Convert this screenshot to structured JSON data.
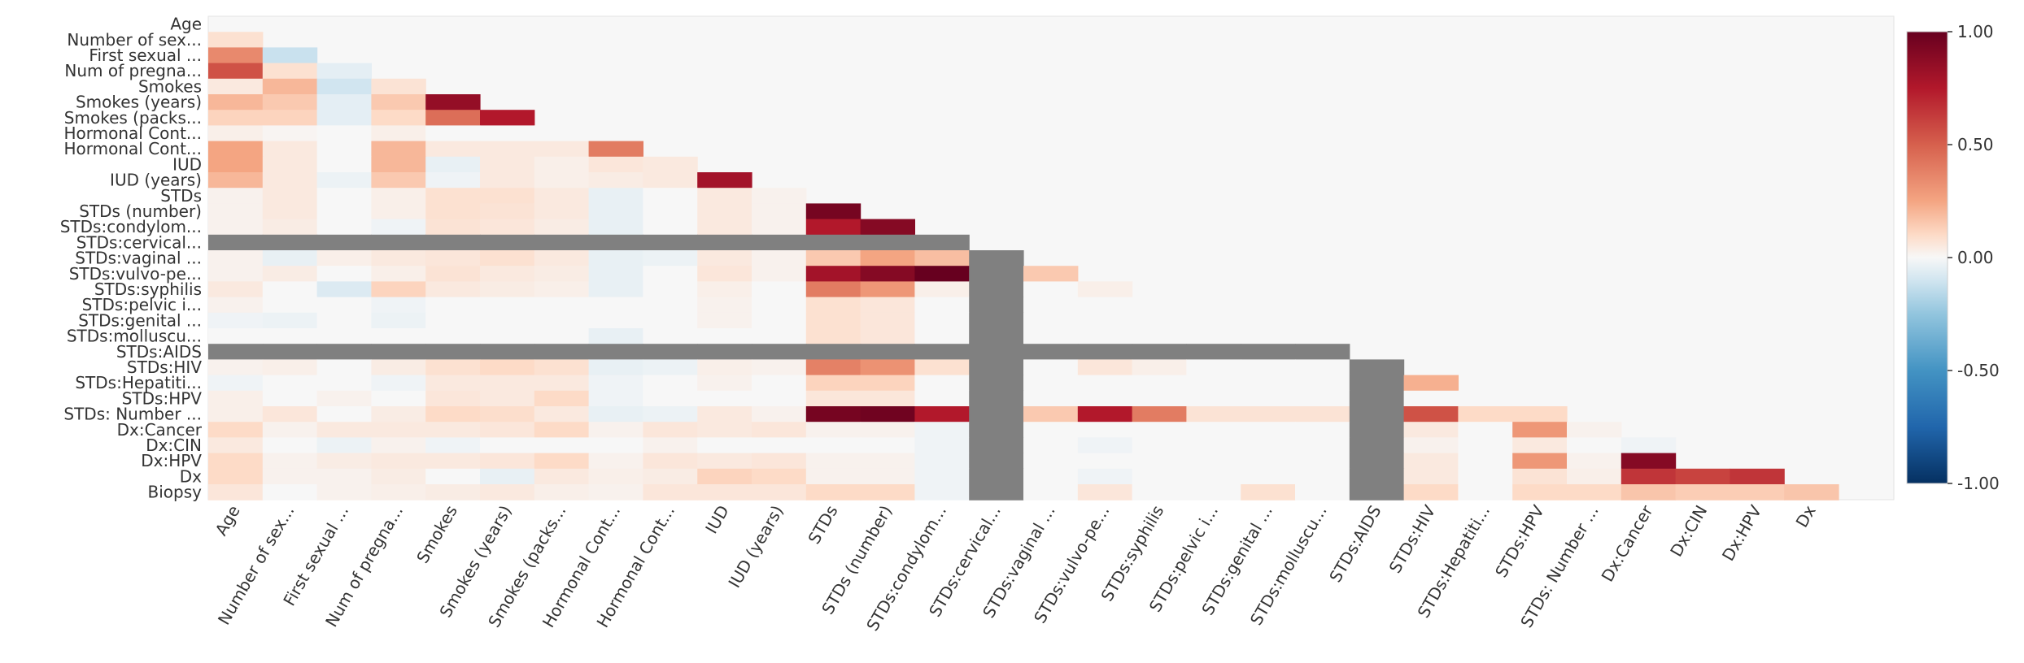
{
  "chart_data": {
    "type": "heatmap",
    "title": "",
    "xlabel": "",
    "ylabel": "",
    "variables": [
      "Age",
      "Number of sex...",
      "First sexual ...",
      "Num of pregna...",
      "Smokes",
      "Smokes (years)",
      "Smokes (packs...",
      "Hormonal Cont...",
      "Hormonal Cont...",
      "IUD",
      "IUD (years)",
      "STDs",
      "STDs (number)",
      "STDs:condylom...",
      "STDs:cervical...",
      "STDs:vaginal ...",
      "STDs:vulvo-pe...",
      "STDs:syphilis",
      "STDs:pelvic i...",
      "STDs:genital ...",
      "STDs:molluscu...",
      "STDs:AIDS",
      "STDs:HIV",
      "STDs:Hepatiti...",
      "STDs:HPV",
      "STDs: Number ...",
      "Dx:Cancer",
      "Dx:CIN",
      "Dx:HPV",
      "Dx",
      "Biopsy"
    ],
    "x_labels": [
      "Age",
      "Number of sex...",
      "First sexual ...",
      "Num of pregna...",
      "Smokes",
      "Smokes (years)",
      "Smokes (packs...",
      "Hormonal Cont...",
      "Hormonal Cont...",
      "IUD",
      "IUD (years)",
      "STDs",
      "STDs (number)",
      "STDs:condylom...",
      "STDs:cervical...",
      "STDs:vaginal ...",
      "STDs:vulvo-pe...",
      "STDs:syphilis",
      "STDs:pelvic i...",
      "STDs:genital ...",
      "STDs:molluscu...",
      "STDs:AIDS",
      "STDs:HIV",
      "STDs:Hepatiti...",
      "STDs:HPV",
      "STDs: Number ...",
      "Dx:Cancer",
      "Dx:CIN",
      "Dx:HPV",
      "Dx"
    ],
    "y_labels": [
      "Age",
      "Number of sex...",
      "First sexual ...",
      "Num of pregna...",
      "Smokes",
      "Smokes (years)",
      "Smokes (packs...",
      "Hormonal Cont...",
      "Hormonal Cont...",
      "IUD",
      "IUD (years)",
      "STDs",
      "STDs (number)",
      "STDs:condylom...",
      "STDs:cervical...",
      "STDs:vaginal ...",
      "STDs:vulvo-pe...",
      "STDs:syphilis",
      "STDs:pelvic i...",
      "STDs:genital ...",
      "STDs:molluscu...",
      "STDs:AIDS",
      "STDs:HIV",
      "STDs:Hepatiti...",
      "STDs:HPV",
      "STDs: Number ...",
      "Dx:Cancer",
      "Dx:CIN",
      "Dx:HPV",
      "Dx",
      "Biopsy"
    ],
    "values": [
      [],
      [
        0.08
      ],
      [
        0.35,
        -0.12
      ],
      [
        0.55,
        0.08,
        -0.05
      ],
      [
        0.05,
        0.2,
        -0.1,
        0.07
      ],
      [
        0.2,
        0.15,
        -0.05,
        0.15,
        0.85
      ],
      [
        0.12,
        0.12,
        -0.05,
        0.1,
        0.45,
        0.75
      ],
      [
        0.03,
        0.01,
        0.0,
        0.03,
        0.0,
        0.0,
        0.0
      ],
      [
        0.25,
        0.05,
        0.0,
        0.2,
        0.05,
        0.05,
        0.05,
        0.4
      ],
      [
        0.25,
        0.05,
        0.0,
        0.2,
        -0.04,
        0.05,
        0.03,
        0.06,
        0.05
      ],
      [
        0.2,
        0.05,
        -0.03,
        0.15,
        -0.02,
        0.05,
        0.03,
        0.04,
        0.05,
        0.8
      ],
      [
        0.02,
        0.05,
        0.0,
        0.03,
        0.08,
        0.08,
        0.05,
        -0.04,
        0.0,
        0.05,
        0.02
      ],
      [
        0.02,
        0.05,
        0.0,
        0.03,
        0.08,
        0.07,
        0.05,
        -0.04,
        0.0,
        0.05,
        0.02,
        0.95
      ],
      [
        0.02,
        0.04,
        0.0,
        -0.02,
        0.07,
        0.06,
        0.04,
        -0.04,
        0.0,
        0.05,
        0.02,
        0.75,
        0.9
      ],
      [
        null,
        null,
        null,
        null,
        null,
        null,
        null,
        null,
        null,
        null,
        null,
        null,
        null,
        null
      ],
      [
        0.02,
        -0.04,
        0.03,
        0.05,
        0.06,
        0.08,
        0.05,
        -0.04,
        -0.03,
        0.05,
        0.02,
        0.15,
        0.25,
        0.18,
        null
      ],
      [
        0.02,
        0.04,
        0.0,
        0.03,
        0.07,
        0.05,
        0.04,
        -0.04,
        0.0,
        0.06,
        0.02,
        0.8,
        0.9,
        1.0,
        null,
        0.15
      ],
      [
        0.05,
        0.0,
        -0.07,
        0.12,
        0.05,
        0.04,
        0.03,
        -0.04,
        0.0,
        0.03,
        0.0,
        0.4,
        0.3,
        0.03,
        null,
        0.0,
        0.03
      ],
      [
        0.02,
        0.0,
        0.0,
        -0.02,
        0.0,
        0.0,
        0.0,
        0.0,
        0.0,
        0.02,
        0.0,
        0.08,
        0.06,
        0.0,
        null,
        0.0,
        0.0,
        0.0
      ],
      [
        -0.02,
        -0.03,
        0.0,
        -0.03,
        0.0,
        0.0,
        0.0,
        0.0,
        0.0,
        0.02,
        0.0,
        0.08,
        0.06,
        0.0,
        null,
        0.0,
        0.0,
        0.0,
        0.0
      ],
      [
        0.0,
        0.0,
        0.0,
        0.0,
        0.0,
        0.0,
        0.0,
        -0.04,
        0.0,
        0.0,
        0.0,
        0.08,
        0.06,
        0.0,
        null,
        0.0,
        0.0,
        0.0,
        0.0,
        0.0
      ],
      [
        null,
        null,
        null,
        null,
        null,
        null,
        null,
        null,
        null,
        null,
        null,
        null,
        null,
        null,
        null,
        null,
        null,
        null,
        null,
        null,
        null
      ],
      [
        0.02,
        0.03,
        0.0,
        0.04,
        0.08,
        0.1,
        0.08,
        -0.04,
        -0.03,
        0.03,
        0.02,
        0.38,
        0.32,
        0.08,
        null,
        0.0,
        0.06,
        0.03,
        0.0,
        0.0,
        0.0,
        null
      ],
      [
        -0.02,
        0.0,
        0.0,
        -0.02,
        0.05,
        0.05,
        0.05,
        -0.02,
        0.0,
        0.02,
        0.0,
        0.12,
        0.12,
        0.0,
        null,
        0.0,
        0.0,
        0.0,
        0.0,
        0.0,
        0.0,
        null,
        0.22
      ],
      [
        0.03,
        0.0,
        0.02,
        0.0,
        0.06,
        0.05,
        0.1,
        -0.02,
        0.0,
        0.0,
        0.0,
        0.06,
        0.06,
        0.0,
        null,
        0.0,
        0.0,
        0.0,
        0.0,
        0.0,
        0.0,
        null,
        0.0,
        0.0
      ],
      [
        0.03,
        0.06,
        0.0,
        0.04,
        0.1,
        0.09,
        0.05,
        -0.04,
        -0.03,
        0.05,
        0.02,
        0.95,
        0.97,
        0.75,
        null,
        0.15,
        0.75,
        0.4,
        0.07,
        0.07,
        0.07,
        null,
        0.55,
        0.1,
        0.1
      ],
      [
        0.1,
        0.02,
        0.05,
        0.05,
        0.05,
        0.06,
        0.1,
        0.02,
        0.06,
        0.05,
        0.06,
        0.02,
        0.02,
        -0.02,
        null,
        0.0,
        0.0,
        0.0,
        0.0,
        0.0,
        0.0,
        null,
        0.05,
        0.0,
        0.3,
        0.02
      ],
      [
        0.05,
        0.0,
        -0.03,
        0.02,
        -0.02,
        0.0,
        0.0,
        0.0,
        0.02,
        0.0,
        0.0,
        0.0,
        0.0,
        -0.02,
        null,
        0.0,
        -0.02,
        0.0,
        0.0,
        0.0,
        0.0,
        null,
        0.02,
        0.0,
        0.05,
        0.0,
        -0.02
      ],
      [
        0.1,
        0.02,
        0.04,
        0.05,
        0.05,
        0.06,
        0.1,
        0.02,
        0.06,
        0.05,
        0.06,
        0.02,
        0.02,
        -0.02,
        null,
        0.0,
        0.0,
        0.0,
        0.0,
        0.0,
        0.0,
        null,
        0.05,
        0.0,
        0.3,
        0.02,
        0.9
      ],
      [
        0.1,
        0.02,
        0.02,
        0.04,
        0.0,
        -0.04,
        0.05,
        0.03,
        0.04,
        0.12,
        0.1,
        0.02,
        0.02,
        -0.02,
        null,
        0.0,
        -0.02,
        0.0,
        0.0,
        0.0,
        0.0,
        null,
        0.05,
        0.0,
        0.07,
        0.03,
        0.65,
        0.6,
        0.65
      ],
      [
        0.06,
        0.0,
        0.02,
        0.03,
        0.04,
        0.05,
        0.03,
        0.02,
        0.06,
        0.06,
        0.06,
        0.1,
        0.1,
        -0.02,
        null,
        0.0,
        0.06,
        0.0,
        0.0,
        0.08,
        0.0,
        null,
        0.1,
        0.0,
        0.1,
        0.1,
        0.16,
        0.14,
        0.14,
        0.16
      ]
    ],
    "masked": "upper triangle including diagonal",
    "nan_color": "#808080",
    "colormap": "RdBu_r",
    "vlim": [
      -1,
      1
    ],
    "colorbar": {
      "ticks": [
        1.0,
        0.5,
        0.0,
        -0.5,
        -1.0
      ],
      "tick_labels": [
        "1.00",
        "0.50",
        "0.00",
        "-0.50",
        "-1.00"
      ]
    },
    "grid": false,
    "legend_position": "right"
  }
}
